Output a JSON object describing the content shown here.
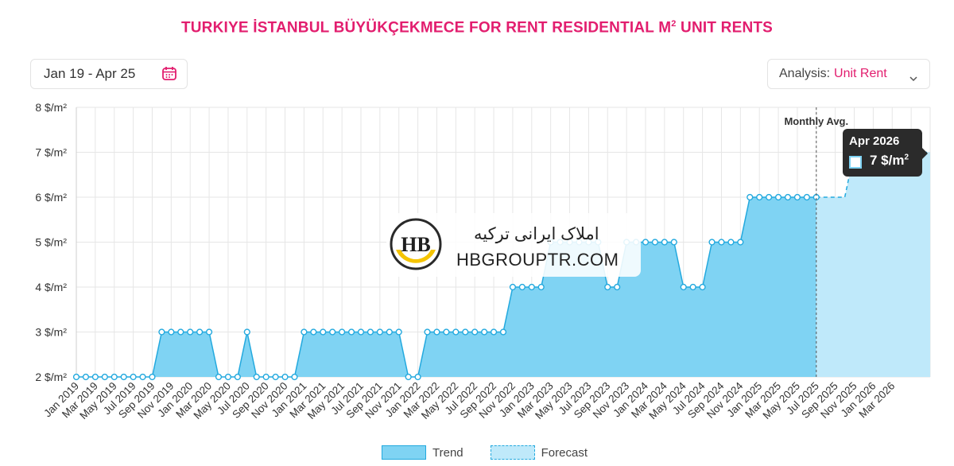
{
  "title": {
    "main": "TURKIYE İSTANBUL BÜYÜKÇEKMECE FOR RENT RESIDENTIAL M",
    "sup": "2",
    "tail": " UNIT RENTS"
  },
  "date_range": {
    "label": "Jan 19 - Apr 25",
    "icon": "calendar-icon"
  },
  "analysis": {
    "label": "Analysis:",
    "value": "Unit Rent",
    "icon": "chevron-down-icon"
  },
  "colors": {
    "accent": "#e21d6e",
    "trend_fill": "#7fd3f3",
    "trend_line": "#23a9de",
    "forecast_fill": "#bfe9fa"
  },
  "watermark": {
    "persian": "املاک ایرانی ترکیه",
    "site": "HBGROUPTR.COM",
    "logo_text": "HB"
  },
  "tooltip": {
    "date": "Apr 2026",
    "value": "7 $/m",
    "sup": "2"
  },
  "chart_data": {
    "type": "area",
    "ylim": [
      2,
      8
    ],
    "y_ticks": [
      "2 $/m²",
      "3 $/m²",
      "4 $/m²",
      "5 $/m²",
      "6 $/m²",
      "7 $/m²",
      "8 $/m²"
    ],
    "y_tick_values": [
      2,
      3,
      4,
      5,
      6,
      7,
      8
    ],
    "x_tick_labels": [
      "Jan 2019",
      "Mar 2019",
      "May 2019",
      "Jul 2019",
      "Sep 2019",
      "Nov 2019",
      "Jan 2020",
      "Mar 2020",
      "May 2020",
      "Jul 2020",
      "Sep 2020",
      "Nov 2020",
      "Jan 2021",
      "Mar 2021",
      "May 2021",
      "Jul 2021",
      "Sep 2021",
      "Nov 2021",
      "Jan 2022",
      "Mar 2022",
      "May 2022",
      "Jul 2022",
      "Sep 2022",
      "Nov 2022",
      "Jan 2023",
      "Mar 2023",
      "May 2023",
      "Jul 2023",
      "Sep 2023",
      "Nov 2023",
      "Jan 2024",
      "Mar 2024",
      "May 2024",
      "Jul 2024",
      "Sep 2024",
      "Nov 2024",
      "Jan 2025",
      "Mar 2025",
      "May 2025",
      "Jul 2025",
      "Sep 2025",
      "Nov 2025",
      "Jan 2026",
      "Mar 2026"
    ],
    "x_start": "Jan 2019",
    "x_end": "Apr 2026",
    "marker_label": "Monthly Avg.",
    "marker_at": "Apr 2025",
    "grid": true,
    "series": [
      {
        "name": "Trend",
        "values": [
          2,
          2,
          2,
          2,
          2,
          2,
          2,
          2,
          2,
          3,
          3,
          3,
          3,
          3,
          3,
          2,
          2,
          2,
          3,
          2,
          2,
          2,
          2,
          2,
          3,
          3,
          3,
          3,
          3,
          3,
          3,
          3,
          3,
          3,
          3,
          2,
          2,
          3,
          3,
          3,
          3,
          3,
          3,
          3,
          3,
          3,
          4,
          4,
          4,
          4,
          5,
          5,
          5,
          5,
          5,
          5,
          4,
          4,
          5,
          5,
          5,
          5,
          5,
          5,
          4,
          4,
          4,
          5,
          5,
          5,
          5,
          6,
          6,
          6,
          6,
          6,
          6,
          6,
          6
        ]
      },
      {
        "name": "Forecast",
        "values": [
          6,
          6,
          6,
          6,
          7,
          7,
          7,
          7,
          7,
          7,
          7,
          7,
          7
        ]
      }
    ]
  },
  "legend": {
    "trend": "Trend",
    "forecast": "Forecast"
  }
}
